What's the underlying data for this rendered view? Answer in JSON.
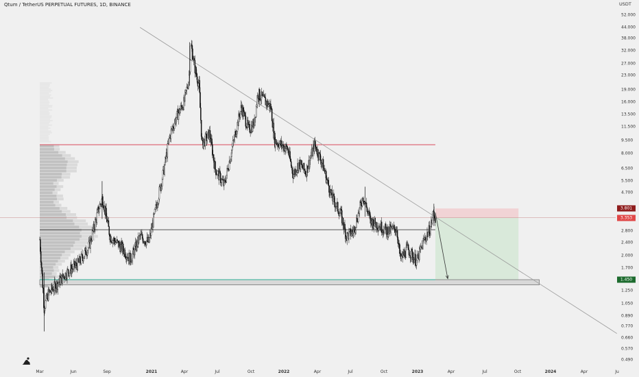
{
  "header": {
    "title": "Qtum / TetherUS PERPETUAL FUTURES, 1D, BINANCE"
  },
  "axis": {
    "unit": "USDT",
    "y_ticks": [
      "52.000",
      "44.000",
      "38.000",
      "32.000",
      "27.000",
      "23.000",
      "19.000",
      "16.000",
      "13.500",
      "11.500",
      "9.500",
      "8.000",
      "6.500",
      "5.500",
      "4.700",
      "2.800",
      "2.400",
      "2.000",
      "1.700",
      "1.250",
      "1.050",
      "0.890",
      "0.770",
      "0.660",
      "0.570",
      "0.490"
    ],
    "x_ticks": [
      {
        "label": "Mar",
        "bold": false
      },
      {
        "label": "Jun",
        "bold": false
      },
      {
        "label": "Sep",
        "bold": false
      },
      {
        "label": "2021",
        "bold": true
      },
      {
        "label": "Apr",
        "bold": false
      },
      {
        "label": "Jul",
        "bold": false
      },
      {
        "label": "Oct",
        "bold": false
      },
      {
        "label": "2022",
        "bold": true
      },
      {
        "label": "Apr",
        "bold": false
      },
      {
        "label": "Jul",
        "bold": false
      },
      {
        "label": "Oct",
        "bold": false
      },
      {
        "label": "2023",
        "bold": true
      },
      {
        "label": "Apr",
        "bold": false
      },
      {
        "label": "Jul",
        "bold": false
      },
      {
        "label": "Oct",
        "bold": false
      },
      {
        "label": "2024",
        "bold": true
      },
      {
        "label": "Apr",
        "bold": false
      },
      {
        "label": "Ju",
        "bold": false
      }
    ]
  },
  "price_tags": [
    {
      "label": "3.801",
      "color": "#8f1d1d"
    },
    {
      "label": "3.353",
      "color": "#e04848"
    },
    {
      "label": "1.450",
      "color": "#1d6b2e"
    }
  ],
  "colors": {
    "resistance_line": "#d9495a",
    "support_line": "#4fb7a3",
    "candles": "#111111",
    "trendline": "#999999"
  },
  "chart_data": {
    "type": "candlestick",
    "symbol": "Qtum / TetherUS PERPETUAL FUTURES",
    "interval": "1D",
    "exchange": "BINANCE",
    "scale": "log",
    "ylim": [
      0.49,
      52.0
    ],
    "x_range": [
      "2020-03",
      "2024-07"
    ],
    "close_path": [
      {
        "date": "2020-03-01",
        "close": 2.5
      },
      {
        "date": "2020-03-13",
        "close": 1.0
      },
      {
        "date": "2020-03-25",
        "close": 1.2
      },
      {
        "date": "2020-04-15",
        "close": 1.35
      },
      {
        "date": "2020-05-15",
        "close": 1.6
      },
      {
        "date": "2020-06-15",
        "close": 1.8
      },
      {
        "date": "2020-07-15",
        "close": 2.3
      },
      {
        "date": "2020-08-10",
        "close": 3.8
      },
      {
        "date": "2020-08-20",
        "close": 4.4
      },
      {
        "date": "2020-09-10",
        "close": 2.6
      },
      {
        "date": "2020-10-15",
        "close": 2.2
      },
      {
        "date": "2020-11-05",
        "close": 1.9
      },
      {
        "date": "2020-12-01",
        "close": 2.6
      },
      {
        "date": "2020-12-25",
        "close": 2.4
      },
      {
        "date": "2021-01-10",
        "close": 3.5
      },
      {
        "date": "2021-02-05",
        "close": 6.5
      },
      {
        "date": "2021-02-20",
        "close": 10.0
      },
      {
        "date": "2021-03-10",
        "close": 13.0
      },
      {
        "date": "2021-04-01",
        "close": 16.0
      },
      {
        "date": "2021-04-14",
        "close": 22.0
      },
      {
        "date": "2021-04-20",
        "close": 35.0
      },
      {
        "date": "2021-05-01",
        "close": 25.0
      },
      {
        "date": "2021-05-12",
        "close": 20.0
      },
      {
        "date": "2021-05-20",
        "close": 9.0
      },
      {
        "date": "2021-06-10",
        "close": 10.5
      },
      {
        "date": "2021-06-25",
        "close": 6.5
      },
      {
        "date": "2021-07-20",
        "close": 5.2
      },
      {
        "date": "2021-08-15",
        "close": 9.5
      },
      {
        "date": "2021-09-05",
        "close": 15.0
      },
      {
        "date": "2021-09-25",
        "close": 11.0
      },
      {
        "date": "2021-10-10",
        "close": 12.0
      },
      {
        "date": "2021-10-20",
        "close": 18.0
      },
      {
        "date": "2021-11-05",
        "close": 16.5
      },
      {
        "date": "2021-11-25",
        "close": 15.0
      },
      {
        "date": "2021-12-05",
        "close": 9.5
      },
      {
        "date": "2022-01-10",
        "close": 8.5
      },
      {
        "date": "2022-01-25",
        "close": 6.0
      },
      {
        "date": "2022-02-10",
        "close": 7.0
      },
      {
        "date": "2022-03-01",
        "close": 6.2
      },
      {
        "date": "2022-03-25",
        "close": 9.0
      },
      {
        "date": "2022-04-15",
        "close": 7.0
      },
      {
        "date": "2022-05-10",
        "close": 4.5
      },
      {
        "date": "2022-06-05",
        "close": 3.5
      },
      {
        "date": "2022-06-20",
        "close": 2.6
      },
      {
        "date": "2022-07-10",
        "close": 2.8
      },
      {
        "date": "2022-08-05",
        "close": 4.5
      },
      {
        "date": "2022-08-25",
        "close": 3.2
      },
      {
        "date": "2022-09-20",
        "close": 3.0
      },
      {
        "date": "2022-10-10",
        "close": 2.8
      },
      {
        "date": "2022-11-05",
        "close": 2.9
      },
      {
        "date": "2022-11-15",
        "close": 1.9
      },
      {
        "date": "2022-12-05",
        "close": 2.2
      },
      {
        "date": "2022-12-30",
        "close": 1.85
      },
      {
        "date": "2023-01-20",
        "close": 2.5
      },
      {
        "date": "2023-02-05",
        "close": 2.9
      },
      {
        "date": "2023-02-14",
        "close": 3.6
      },
      {
        "date": "2023-02-19",
        "close": 3.35
      }
    ],
    "horizontal_levels": [
      {
        "price": 9.0,
        "style": "resistance"
      },
      {
        "price": 2.85,
        "style": "pivot"
      },
      {
        "price": 1.45,
        "style": "support"
      }
    ],
    "support_zone": {
      "low": 1.35,
      "high": 1.45
    },
    "trendline": [
      {
        "date": "2020-12-01",
        "price": 44.0
      },
      {
        "date": "2024-07-01",
        "price": 0.7
      }
    ],
    "projection": {
      "from": {
        "date": "2023-02-19",
        "price": 3.6
      },
      "to": {
        "date": "2023-03-25",
        "price": 1.47
      }
    },
    "short_position": {
      "entry": 3.353,
      "stop": 3.801,
      "target": 1.45,
      "start": "2023-02-19",
      "end": "2023-10-05"
    },
    "volume_profile": "left side, levels 1.30–9.0"
  }
}
